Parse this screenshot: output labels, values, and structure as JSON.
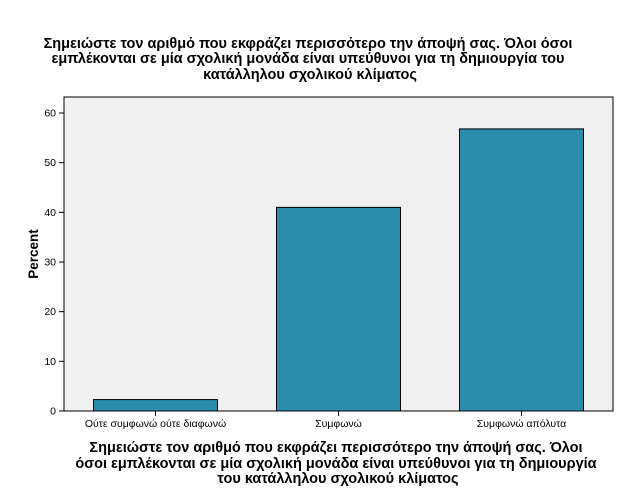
{
  "chart_data": {
    "type": "bar",
    "title": [
      "Σημειώστε τον αριθμό που εκφράζει περισσότερο την άποψή σας. Όλοι όσοι",
      "εμπλέκονται σε μία σχολική μονάδα είναι υπεύθυνοι για τη δημιουργία του",
      "κατάλληλου σχολικού κλίματος"
    ],
    "xlabel": [
      "Σημειώστε τον αριθμό που εκφράζει περισσότερο την άποψή σας. Όλοι",
      "όσοι εμπλέκονται σε μία σχολική μονάδα είναι υπεύθυνοι για τη δημιουργία",
      "του κατάλληλου σχολικού κλίματος"
    ],
    "ylabel": "Percent",
    "categories": [
      "Ούτε συμφωνώ ούτε διαφωνώ",
      "Συμφωνώ",
      "Συμφωνώ απόλυτα"
    ],
    "values": [
      2.3,
      41.0,
      56.8
    ],
    "ylim": [
      0,
      63
    ],
    "yticks": [
      0,
      10,
      20,
      30,
      40,
      50,
      60
    ],
    "bar_color": "#2b8cab",
    "plot_background": "#f0f0f0",
    "grid": false,
    "legend": "none"
  }
}
